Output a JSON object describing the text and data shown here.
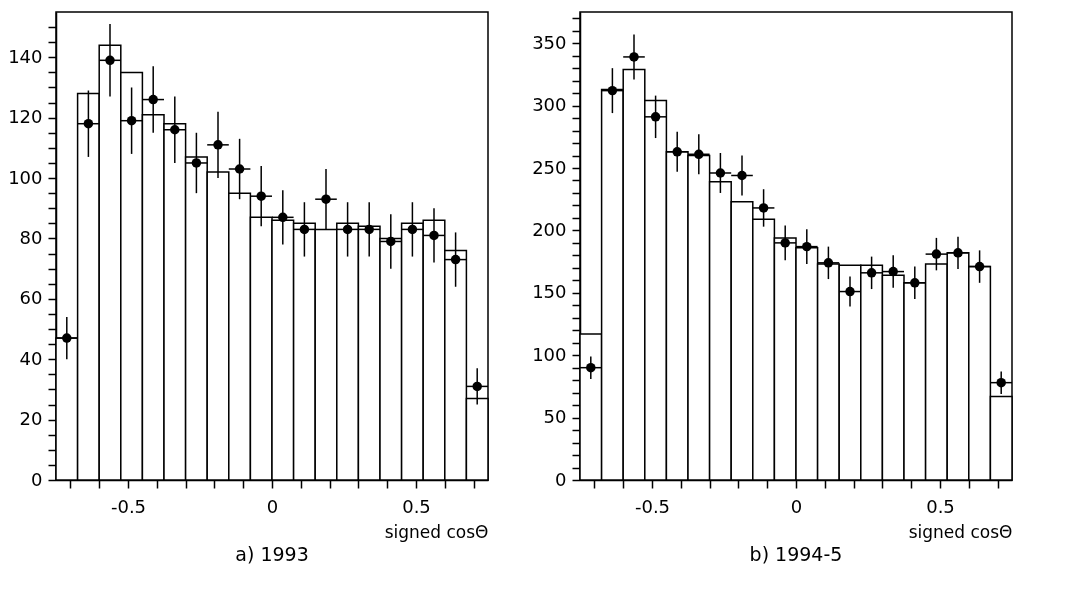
{
  "chart_data": [
    {
      "type": "histogram",
      "title": "a) 1993",
      "xlabel": "signed cosΘ",
      "bins": [
        -0.75,
        -0.675,
        -0.6,
        -0.525,
        -0.45,
        -0.375,
        -0.3,
        -0.225,
        -0.15,
        -0.075,
        0,
        0.075,
        0.15,
        0.225,
        0.3,
        0.375,
        0.45,
        0.525,
        0.6,
        0.675,
        0.75
      ],
      "xlim": [
        -0.75,
        0.75
      ],
      "xticks": [
        {
          "value": -0.7,
          "label": null
        },
        {
          "value": -0.6,
          "label": null
        },
        -0.5,
        {
          "value": -0.4,
          "label": null
        },
        {
          "value": -0.3,
          "label": null
        },
        {
          "value": -0.2,
          "label": null
        },
        {
          "value": -0.1,
          "label": null
        },
        0,
        {
          "value": 0.1,
          "label": null
        },
        {
          "value": 0.2,
          "label": null
        },
        {
          "value": 0.3,
          "label": null
        },
        {
          "value": 0.4,
          "label": null
        },
        0.5,
        {
          "value": 0.6,
          "label": null
        },
        {
          "value": 0.7,
          "label": null
        }
      ],
      "ylim": [
        0,
        155
      ],
      "yticks": [
        0,
        {
          "value": 5,
          "label": null
        },
        {
          "value": 10,
          "label": null
        },
        {
          "value": 15,
          "label": null
        },
        20,
        {
          "value": 25,
          "label": null
        },
        {
          "value": 30,
          "label": null
        },
        {
          "value": 35,
          "label": null
        },
        40,
        {
          "value": 45,
          "label": null
        },
        {
          "value": 50,
          "label": null
        },
        {
          "value": 55,
          "label": null
        },
        60,
        {
          "value": 65,
          "label": null
        },
        {
          "value": 70,
          "label": null
        },
        {
          "value": 75,
          "label": null
        },
        80,
        {
          "value": 85,
          "label": null
        },
        {
          "value": 90,
          "label": null
        },
        {
          "value": 95,
          "label": null
        },
        100,
        {
          "value": 105,
          "label": null
        },
        {
          "value": 110,
          "label": null
        },
        {
          "value": 115,
          "label": null
        },
        120,
        {
          "value": 125,
          "label": null
        },
        {
          "value": 130,
          "label": null
        },
        {
          "value": 135,
          "label": null
        },
        140,
        {
          "value": 145,
          "label": null
        },
        {
          "value": 150,
          "label": null
        }
      ],
      "marker": "circle",
      "series": [
        {
          "type": "histogram",
          "color": "#000000",
          "values": [
            47,
            128,
            144,
            135,
            121,
            118,
            107,
            102,
            95,
            87,
            86,
            85,
            83,
            85,
            84,
            80,
            85,
            86,
            76,
            27
          ]
        },
        {
          "type": "scatter",
          "color": "#000000",
          "x": [
            -0.7125,
            -0.6375,
            -0.5625,
            -0.4875,
            -0.4125,
            -0.3375,
            -0.2625,
            -0.1875,
            -0.1125,
            -0.0375,
            0.0375,
            0.1125,
            0.1875,
            0.2625,
            0.3375,
            0.4125,
            0.4875,
            0.5625,
            0.6375,
            0.7125
          ],
          "values": [
            47,
            118,
            139,
            119,
            126,
            116,
            105,
            111,
            103,
            94,
            87,
            83,
            93,
            83,
            83,
            79,
            83,
            81,
            73,
            31
          ],
          "errors": [
            7,
            11,
            12,
            11,
            11,
            11,
            10,
            11,
            10,
            10,
            9,
            9,
            10,
            9,
            9,
            9,
            9,
            9,
            9,
            6
          ],
          "xerrors": [
            0.0375,
            0.0375,
            0.0375,
            0.0375,
            0.0375,
            0.0375,
            0.0375,
            0.0375,
            0.0375,
            0.0375,
            0.0375,
            0.0375,
            0.0375,
            0.0375,
            0.0375,
            0.0375,
            0.0375,
            0.0375,
            0.0375,
            0.0375
          ]
        }
      ]
    },
    {
      "type": "histogram",
      "title": "b) 1994-5",
      "xlabel": "signed cosΘ",
      "bins": [
        -0.75,
        -0.675,
        -0.6,
        -0.525,
        -0.45,
        -0.375,
        -0.3,
        -0.225,
        -0.15,
        -0.075,
        0,
        0.075,
        0.15,
        0.225,
        0.3,
        0.375,
        0.45,
        0.525,
        0.6,
        0.675,
        0.75
      ],
      "xlim": [
        -0.75,
        0.75
      ],
      "xticks": [
        {
          "value": -0.7,
          "label": null
        },
        {
          "value": -0.6,
          "label": null
        },
        -0.5,
        {
          "value": -0.4,
          "label": null
        },
        {
          "value": -0.3,
          "label": null
        },
        {
          "value": -0.2,
          "label": null
        },
        {
          "value": -0.1,
          "label": null
        },
        0,
        {
          "value": 0.1,
          "label": null
        },
        {
          "value": 0.2,
          "label": null
        },
        {
          "value": 0.3,
          "label": null
        },
        {
          "value": 0.4,
          "label": null
        },
        0.5,
        {
          "value": 0.6,
          "label": null
        },
        {
          "value": 0.7,
          "label": null
        }
      ],
      "ylim": [
        0,
        375
      ],
      "yticks": [
        0,
        {
          "value": 10,
          "label": null
        },
        {
          "value": 20,
          "label": null
        },
        {
          "value": 30,
          "label": null
        },
        {
          "value": 40,
          "label": null
        },
        50,
        {
          "value": 60,
          "label": null
        },
        {
          "value": 70,
          "label": null
        },
        {
          "value": 80,
          "label": null
        },
        {
          "value": 90,
          "label": null
        },
        100,
        {
          "value": 110,
          "label": null
        },
        {
          "value": 120,
          "label": null
        },
        {
          "value": 130,
          "label": null
        },
        {
          "value": 140,
          "label": null
        },
        150,
        {
          "value": 160,
          "label": null
        },
        {
          "value": 170,
          "label": null
        },
        {
          "value": 180,
          "label": null
        },
        {
          "value": 190,
          "label": null
        },
        200,
        {
          "value": 210,
          "label": null
        },
        {
          "value": 220,
          "label": null
        },
        {
          "value": 230,
          "label": null
        },
        {
          "value": 240,
          "label": null
        },
        250,
        {
          "value": 260,
          "label": null
        },
        {
          "value": 270,
          "label": null
        },
        {
          "value": 280,
          "label": null
        },
        {
          "value": 290,
          "label": null
        },
        300,
        {
          "value": 310,
          "label": null
        },
        {
          "value": 320,
          "label": null
        },
        {
          "value": 330,
          "label": null
        },
        {
          "value": 340,
          "label": null
        },
        350,
        {
          "value": 360,
          "label": null
        },
        {
          "value": 370,
          "label": null
        }
      ],
      "marker": "circle",
      "series": [
        {
          "type": "histogram",
          "color": "#000000",
          "values": [
            117,
            313,
            329,
            304,
            263,
            260,
            239,
            223,
            209,
            194,
            186,
            173,
            172,
            172,
            164,
            158,
            173,
            182,
            171,
            67
          ]
        },
        {
          "type": "scatter",
          "color": "#000000",
          "x": [
            -0.7125,
            -0.6375,
            -0.5625,
            -0.4875,
            -0.4125,
            -0.3375,
            -0.2625,
            -0.1875,
            -0.1125,
            -0.0375,
            0.0375,
            0.1125,
            0.1875,
            0.2625,
            0.3375,
            0.4125,
            0.4875,
            0.5625,
            0.6375,
            0.7125
          ],
          "values": [
            90,
            312,
            339,
            291,
            263,
            261,
            246,
            244,
            218,
            190,
            187,
            174,
            151,
            166,
            167,
            158,
            181,
            182,
            171,
            78
          ],
          "errors": [
            9,
            18,
            18,
            17,
            16,
            16,
            16,
            16,
            15,
            14,
            14,
            13,
            12,
            13,
            13,
            13,
            13,
            13,
            13,
            9
          ],
          "xerrors": [
            0.0375,
            0.0375,
            0.0375,
            0.0375,
            0.0375,
            0.0375,
            0.0375,
            0.0375,
            0.0375,
            0.0375,
            0.0375,
            0.0375,
            0.0375,
            0.0375,
            0.0375,
            0.0375,
            0.0375,
            0.0375,
            0.0375,
            0.0375
          ]
        }
      ]
    }
  ]
}
